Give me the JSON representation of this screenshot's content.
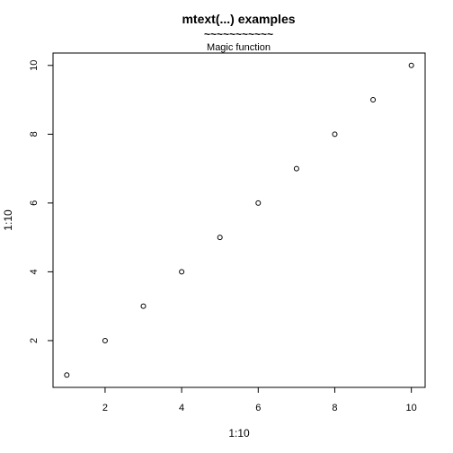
{
  "chart_data": {
    "type": "scatter",
    "title": "mtext(...) examples",
    "title_underline": "~~~~~~~~~~~",
    "subtitle": "Magic function",
    "xlabel": "1:10",
    "ylabel": "1:10",
    "x": [
      1,
      2,
      3,
      4,
      5,
      6,
      7,
      8,
      9,
      10
    ],
    "y": [
      1,
      2,
      3,
      4,
      5,
      6,
      7,
      8,
      9,
      10
    ],
    "xlim": [
      0.64,
      10.36
    ],
    "ylim": [
      0.64,
      10.36
    ],
    "xticks": [
      2,
      4,
      6,
      8,
      10
    ],
    "yticks": [
      2,
      4,
      6,
      8,
      10
    ],
    "marker": "open-circle",
    "grid": false,
    "legend": "none",
    "colors": {
      "points": "#000000",
      "axes": "#000000",
      "background": "#ffffff"
    }
  }
}
